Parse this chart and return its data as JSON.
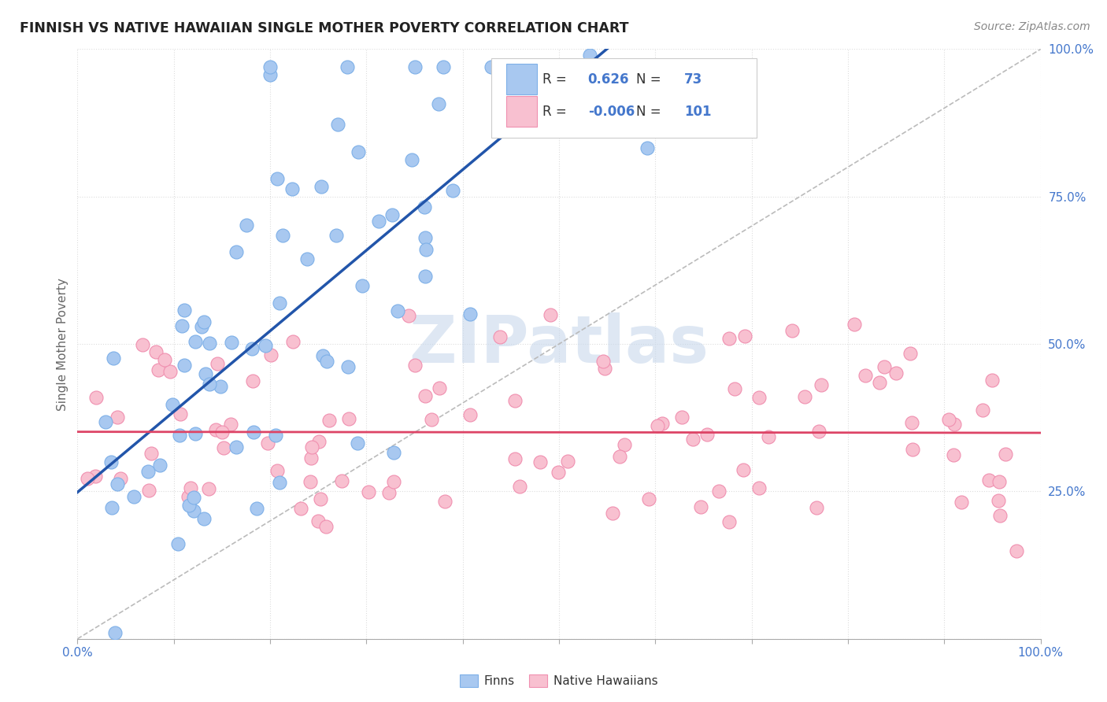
{
  "title": "FINNISH VS NATIVE HAWAIIAN SINGLE MOTHER POVERTY CORRELATION CHART",
  "source": "Source: ZipAtlas.com",
  "ylabel": "Single Mother Poverty",
  "finn_R": 0.626,
  "finn_N": 73,
  "hawaiian_R": -0.006,
  "hawaiian_N": 101,
  "finn_color": "#A8C8F0",
  "finn_edge_color": "#7EB0E8",
  "hawaiian_color": "#F8C0D0",
  "hawaiian_edge_color": "#F090B0",
  "finn_line_color": "#2255AA",
  "hawaiian_line_color": "#DD4466",
  "diagonal_color": "#BBBBBB",
  "watermark_color": "#C8D8EC",
  "legend_label_finn": "Finns",
  "legend_label_hawaiian": "Native Hawaiians",
  "background_color": "#FFFFFF",
  "grid_color": "#DDDDDD",
  "title_color": "#222222",
  "axis_label_color": "#4477CC",
  "text_dark": "#333333"
}
